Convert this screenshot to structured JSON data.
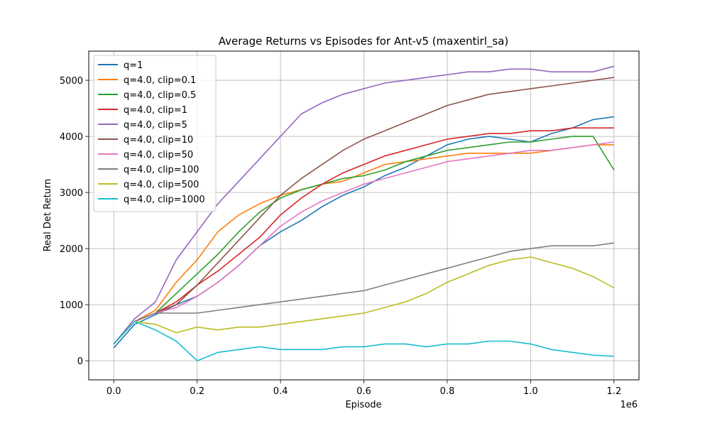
{
  "chart_data": {
    "type": "line",
    "title": "Average Returns vs Episodes for Ant-v5 (maxentirl_sa)",
    "xlabel": "Episode",
    "ylabel": "Real Det Return",
    "x_offset_label": "1e6",
    "xlim": [
      -60000,
      1260000
    ],
    "ylim": [
      -340,
      5520
    ],
    "x_ticks": [
      0,
      200000,
      400000,
      600000,
      800000,
      1000000,
      1200000
    ],
    "x_tick_labels": [
      "0.0",
      "0.2",
      "0.4",
      "0.6",
      "0.8",
      "1.0",
      "1.2"
    ],
    "y_ticks": [
      0,
      1000,
      2000,
      3000,
      4000,
      5000
    ],
    "y_tick_labels": [
      "0",
      "1000",
      "2000",
      "3000",
      "4000",
      "5000"
    ],
    "grid": true,
    "legend_position": "top-left",
    "x": [
      0,
      50000,
      100000,
      150000,
      200000,
      250000,
      300000,
      350000,
      400000,
      450000,
      500000,
      550000,
      600000,
      650000,
      700000,
      750000,
      800000,
      850000,
      900000,
      950000,
      1000000,
      1050000,
      1100000,
      1150000,
      1200000
    ],
    "series": [
      {
        "name": "q=1",
        "color": "#1f77b4",
        "values": [
          230,
          650,
          820,
          1000,
          1150,
          1400,
          1700,
          2050,
          2300,
          2500,
          2750,
          2950,
          3100,
          3300,
          3450,
          3650,
          3850,
          3950,
          4000,
          3950,
          3900,
          4050,
          4150,
          4300,
          4350
        ]
      },
      {
        "name": "q=4.0, clip=0.1",
        "color": "#ff7f0e",
        "values": [
          300,
          700,
          900,
          1400,
          1800,
          2300,
          2600,
          2800,
          2950,
          3050,
          3150,
          3200,
          3350,
          3500,
          3550,
          3600,
          3650,
          3700,
          3700,
          3700,
          3700,
          3750,
          3800,
          3850,
          3850
        ]
      },
      {
        "name": "q=4.0, clip=0.5",
        "color": "#2ca02c",
        "values": [
          300,
          700,
          850,
          1200,
          1550,
          1900,
          2300,
          2650,
          2900,
          3050,
          3150,
          3250,
          3300,
          3400,
          3550,
          3650,
          3750,
          3800,
          3850,
          3900,
          3900,
          3950,
          4000,
          4000,
          3400
        ]
      },
      {
        "name": "q=4.0, clip=1",
        "color": "#d62728",
        "values": [
          300,
          700,
          850,
          1050,
          1350,
          1600,
          1900,
          2200,
          2600,
          2900,
          3150,
          3350,
          3500,
          3650,
          3750,
          3850,
          3950,
          4000,
          4050,
          4050,
          4100,
          4100,
          4150,
          4150,
          4150
        ]
      },
      {
        "name": "q=4.0, clip=5",
        "color": "#9467bd",
        "values": [
          300,
          750,
          1050,
          1800,
          2300,
          2800,
          3200,
          3600,
          4000,
          4400,
          4600,
          4750,
          4850,
          4950,
          5000,
          5050,
          5100,
          5150,
          5150,
          5200,
          5200,
          5150,
          5150,
          5150,
          5250
        ]
      },
      {
        "name": "q=4.0, clip=10",
        "color": "#8c564b",
        "values": [
          300,
          700,
          850,
          1000,
          1350,
          1750,
          2150,
          2550,
          2950,
          3250,
          3500,
          3750,
          3950,
          4100,
          4250,
          4400,
          4550,
          4650,
          4750,
          4800,
          4850,
          4900,
          4950,
          5000,
          5050
        ]
      },
      {
        "name": "q=4.0, clip=50",
        "color": "#e377c2",
        "values": [
          300,
          700,
          850,
          950,
          1150,
          1400,
          1700,
          2050,
          2400,
          2650,
          2850,
          3000,
          3150,
          3250,
          3350,
          3450,
          3550,
          3600,
          3650,
          3700,
          3750,
          3750,
          3800,
          3850,
          3900
        ]
      },
      {
        "name": "q=4.0, clip=100",
        "color": "#7f7f7f",
        "values": [
          300,
          700,
          850,
          850,
          850,
          900,
          950,
          1000,
          1050,
          1100,
          1150,
          1200,
          1250,
          1350,
          1450,
          1550,
          1650,
          1750,
          1850,
          1950,
          2000,
          2050,
          2050,
          2050,
          2100
        ]
      },
      {
        "name": "q=4.0, clip=500",
        "color": "#bcbd22",
        "values": [
          300,
          700,
          650,
          500,
          600,
          550,
          600,
          600,
          650,
          700,
          750,
          800,
          850,
          950,
          1050,
          1200,
          1400,
          1550,
          1700,
          1800,
          1850,
          1750,
          1650,
          1500,
          1300
        ]
      },
      {
        "name": "q=4.0, clip=1000",
        "color": "#17becf",
        "values": [
          300,
          700,
          550,
          350,
          0,
          150,
          200,
          250,
          200,
          200,
          200,
          250,
          250,
          300,
          300,
          250,
          300,
          300,
          350,
          350,
          300,
          200,
          150,
          100,
          80
        ]
      }
    ]
  }
}
